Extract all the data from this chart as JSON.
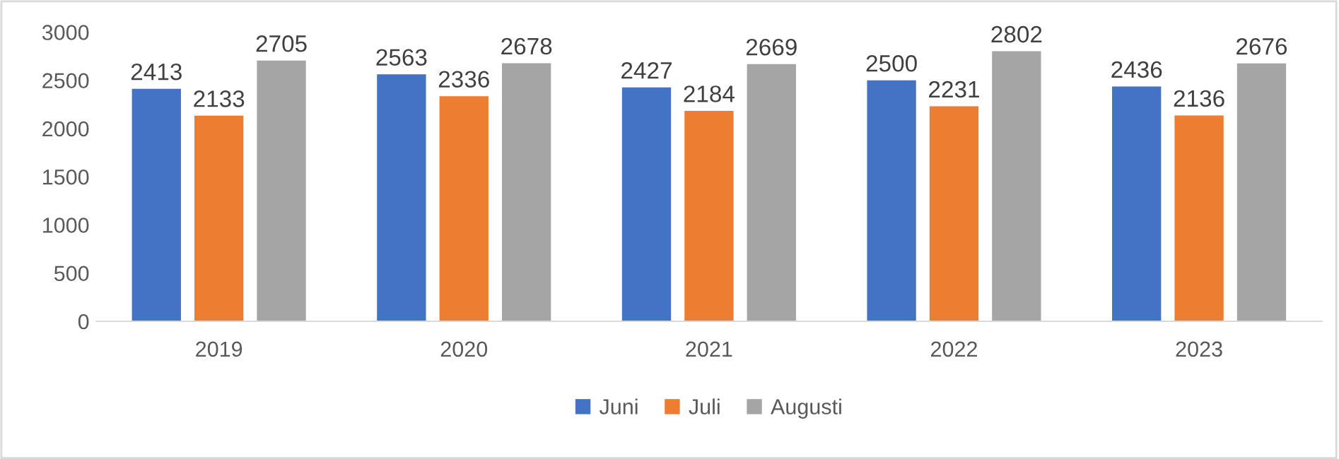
{
  "chart_data": {
    "type": "bar",
    "categories": [
      "2019",
      "2020",
      "2021",
      "2022",
      "2023"
    ],
    "series": [
      {
        "name": "Juni",
        "color": "#4472c4",
        "values": [
          2413,
          2563,
          2427,
          2500,
          2436
        ]
      },
      {
        "name": "Juli",
        "color": "#ed7d31",
        "values": [
          2133,
          2336,
          2184,
          2231,
          2136
        ]
      },
      {
        "name": "Augusti",
        "color": "#a5a5a5",
        "values": [
          2705,
          2678,
          2669,
          2802,
          2676
        ]
      }
    ],
    "ylim": [
      0,
      3000
    ],
    "yticks": [
      0,
      500,
      1000,
      1500,
      2000,
      2500,
      3000
    ],
    "data_labels": true,
    "grid": false,
    "legend": "bottom"
  }
}
